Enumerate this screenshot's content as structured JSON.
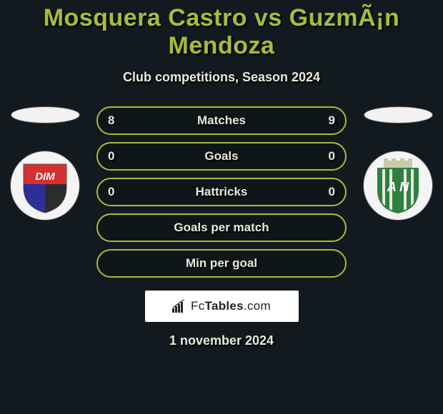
{
  "title": "Mosquera Castro vs GuzmÃ¡n Mendoza",
  "subtitle": "Club competitions, Season 2024",
  "date": "1 november 2024",
  "background_color": "#121a1f",
  "accent_color": "#a9bb3a",
  "text_color": "#e8e9dc",
  "title_fontsize": 34,
  "subtitle_fontsize": 18,
  "flag_color": "#f2f2f2",
  "crest_background": "#f4f4f4",
  "left_team": {
    "name": "DIM",
    "shield_top_color": "#d73030",
    "shield_bottom_left": "#2e2e98",
    "shield_bottom_right": "#2c2c2c",
    "text": "DIM",
    "text_color": "#ffffff"
  },
  "right_team": {
    "name": "AN",
    "primary_color": "#2f7f42",
    "stripe_light": "#e8ead9",
    "castle_color": "#c9caa9",
    "text": "A N",
    "text_color": "#ffffff"
  },
  "rows": [
    {
      "label": "Matches",
      "left": "8",
      "right": "9",
      "border": "#a9bb3a"
    },
    {
      "label": "Goals",
      "left": "0",
      "right": "0",
      "border": "#a9bb3a"
    },
    {
      "label": "Hattricks",
      "left": "0",
      "right": "0",
      "border": "#a9bb3a"
    },
    {
      "label": "Goals per match",
      "left": "",
      "right": "",
      "border": "#a9bb3a"
    },
    {
      "label": "Min per goal",
      "left": "",
      "right": "",
      "border": "#a9bb3a"
    }
  ],
  "watermark": {
    "brand_prefix": "Fc",
    "brand_bold": "Tables",
    "brand_suffix": ".com",
    "bg": "#ffffff",
    "text_color": "#222222",
    "icon_color": "#222222"
  }
}
